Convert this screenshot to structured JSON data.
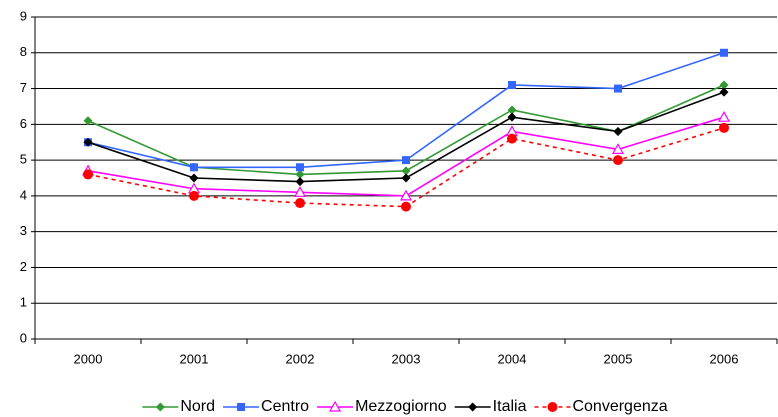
{
  "chart_data": {
    "type": "line",
    "categories": [
      "2000",
      "2001",
      "2002",
      "2003",
      "2004",
      "2005",
      "2006"
    ],
    "series": [
      {
        "name": "Nord",
        "color": "#339933",
        "marker": "diamond",
        "values": [
          6.1,
          4.8,
          4.6,
          4.7,
          6.4,
          5.8,
          7.1
        ]
      },
      {
        "name": "Centro",
        "color": "#3366ff",
        "marker": "square",
        "values": [
          5.5,
          4.8,
          4.8,
          5.0,
          7.1,
          7.0,
          8.0
        ]
      },
      {
        "name": "Mezzogiorno",
        "color": "#ff00ff",
        "marker": "triangle-open",
        "values": [
          4.7,
          4.2,
          4.1,
          4.0,
          5.8,
          5.3,
          6.2
        ]
      },
      {
        "name": "Italia",
        "color": "#000000",
        "marker": "diamond",
        "values": [
          5.5,
          4.5,
          4.4,
          4.5,
          6.2,
          5.8,
          6.9
        ]
      },
      {
        "name": "Convergenza",
        "color": "#ff0000",
        "marker": "circle",
        "dashed": true,
        "values": [
          4.6,
          4.0,
          3.8,
          3.7,
          5.6,
          5.0,
          5.9
        ]
      }
    ],
    "ylim": [
      0,
      9
    ],
    "yticks": [
      0,
      1,
      2,
      3,
      4,
      5,
      6,
      7,
      8,
      9
    ],
    "grid": true,
    "legend": "bottom"
  }
}
